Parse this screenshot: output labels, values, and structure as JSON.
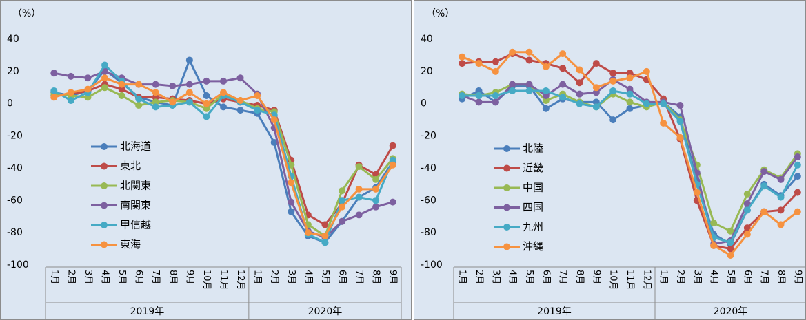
{
  "chart_data": [
    {
      "type": "line",
      "y_label": "（%）",
      "categories": [
        "1月",
        "2月",
        "3月",
        "4月",
        "5月",
        "6月",
        "7月",
        "8月",
        "9月",
        "10月",
        "11月",
        "12月",
        "1月",
        "2月",
        "3月",
        "4月",
        "5月",
        "6月",
        "7月",
        "8月",
        "9月"
      ],
      "groups": [
        {
          "label": "2019年",
          "count": 12
        },
        {
          "label": "2020年",
          "count": 9
        }
      ],
      "ylim": [
        -100,
        40
      ],
      "yticks": [
        -100,
        -80,
        -60,
        -40,
        -20,
        0,
        20,
        40
      ],
      "series": [
        {
          "name": "北海道",
          "color": "#4a7ebb",
          "values": [
            7,
            5,
            8,
            21,
            13,
            4,
            1,
            -1,
            27,
            5,
            -2,
            -4,
            -6,
            -24,
            -67,
            -82,
            -86,
            -73,
            -58,
            -52,
            -36
          ]
        },
        {
          "name": "東北",
          "color": "#be4b48",
          "values": [
            5,
            6,
            8,
            12,
            9,
            4,
            4,
            3,
            2,
            0,
            3,
            1,
            -1,
            -4,
            -35,
            -69,
            -75,
            -62,
            -38,
            -44,
            -26
          ]
        },
        {
          "name": "北関東",
          "color": "#98b954",
          "values": [
            6,
            5,
            4,
            10,
            5,
            -1,
            1,
            2,
            1,
            -3,
            6,
            2,
            -3,
            -5,
            -38,
            -75,
            -82,
            -54,
            -39,
            -47,
            -34
          ]
        },
        {
          "name": "南関東",
          "color": "#7d60a0",
          "values": [
            19,
            17,
            16,
            20,
            16,
            12,
            12,
            11,
            12,
            14,
            14,
            16,
            6,
            -15,
            -61,
            -79,
            -83,
            -73,
            -69,
            -64,
            -61
          ]
        },
        {
          "name": "甲信越",
          "color": "#46aac5",
          "values": [
            8,
            2,
            7,
            24,
            14,
            3,
            -2,
            -1,
            1,
            -8,
            5,
            1,
            -4,
            -7,
            -45,
            -81,
            -86,
            -60,
            -58,
            -60,
            -35
          ]
        },
        {
          "name": "東海",
          "color": "#f69240",
          "values": [
            4,
            7,
            9,
            16,
            12,
            12,
            7,
            1,
            7,
            0,
            7,
            2,
            5,
            -10,
            -49,
            -80,
            -82,
            -64,
            -53,
            -53,
            -38
          ]
        }
      ]
    },
    {
      "type": "line",
      "y_label": "（%）",
      "categories": [
        "1月",
        "2月",
        "3月",
        "4月",
        "5月",
        "6月",
        "7月",
        "8月",
        "9月",
        "10月",
        "11月",
        "12月",
        "1月",
        "2月",
        "3月",
        "4月",
        "5月",
        "6月",
        "7月",
        "8月",
        "9月"
      ],
      "groups": [
        {
          "label": "2019年",
          "count": 12
        },
        {
          "label": "2020年",
          "count": 9
        }
      ],
      "ylim": [
        -100,
        40
      ],
      "yticks": [
        -100,
        -80,
        -60,
        -40,
        -20,
        0,
        20,
        40
      ],
      "series": [
        {
          "name": "北陸",
          "color": "#4a7ebb",
          "values": [
            3,
            8,
            1,
            11,
            11,
            -3,
            3,
            1,
            1,
            -10,
            -3,
            -1,
            1,
            -8,
            -48,
            -81,
            -87,
            -66,
            -50,
            -57,
            -45
          ]
        },
        {
          "name": "近畿",
          "color": "#be4b48",
          "values": [
            25,
            26,
            26,
            31,
            27,
            25,
            22,
            13,
            25,
            19,
            19,
            15,
            3,
            -22,
            -60,
            -88,
            -90,
            -77,
            -67,
            -66,
            -55
          ]
        },
        {
          "name": "中国",
          "color": "#98b954",
          "values": [
            6,
            5,
            7,
            12,
            12,
            2,
            6,
            1,
            -2,
            6,
            1,
            -2,
            1,
            -10,
            -38,
            -74,
            -79,
            -56,
            -41,
            -46,
            -31
          ]
        },
        {
          "name": "四国",
          "color": "#7d60a0",
          "values": [
            5,
            1,
            1,
            12,
            12,
            5,
            12,
            6,
            7,
            15,
            9,
            1,
            1,
            -1,
            -43,
            -87,
            -85,
            -62,
            -42,
            -47,
            -33
          ]
        },
        {
          "name": "九州",
          "color": "#46aac5",
          "values": [
            5,
            5,
            5,
            8,
            8,
            8,
            4,
            0,
            -2,
            8,
            6,
            0,
            0,
            -11,
            -50,
            -83,
            -86,
            -66,
            -51,
            -58,
            -38
          ]
        },
        {
          "name": "沖縄",
          "color": "#f69240",
          "values": [
            29,
            25,
            20,
            32,
            32,
            23,
            31,
            21,
            10,
            14,
            16,
            20,
            -12,
            -21,
            -55,
            -88,
            -94,
            -81,
            -67,
            -75,
            -67
          ]
        }
      ]
    }
  ]
}
